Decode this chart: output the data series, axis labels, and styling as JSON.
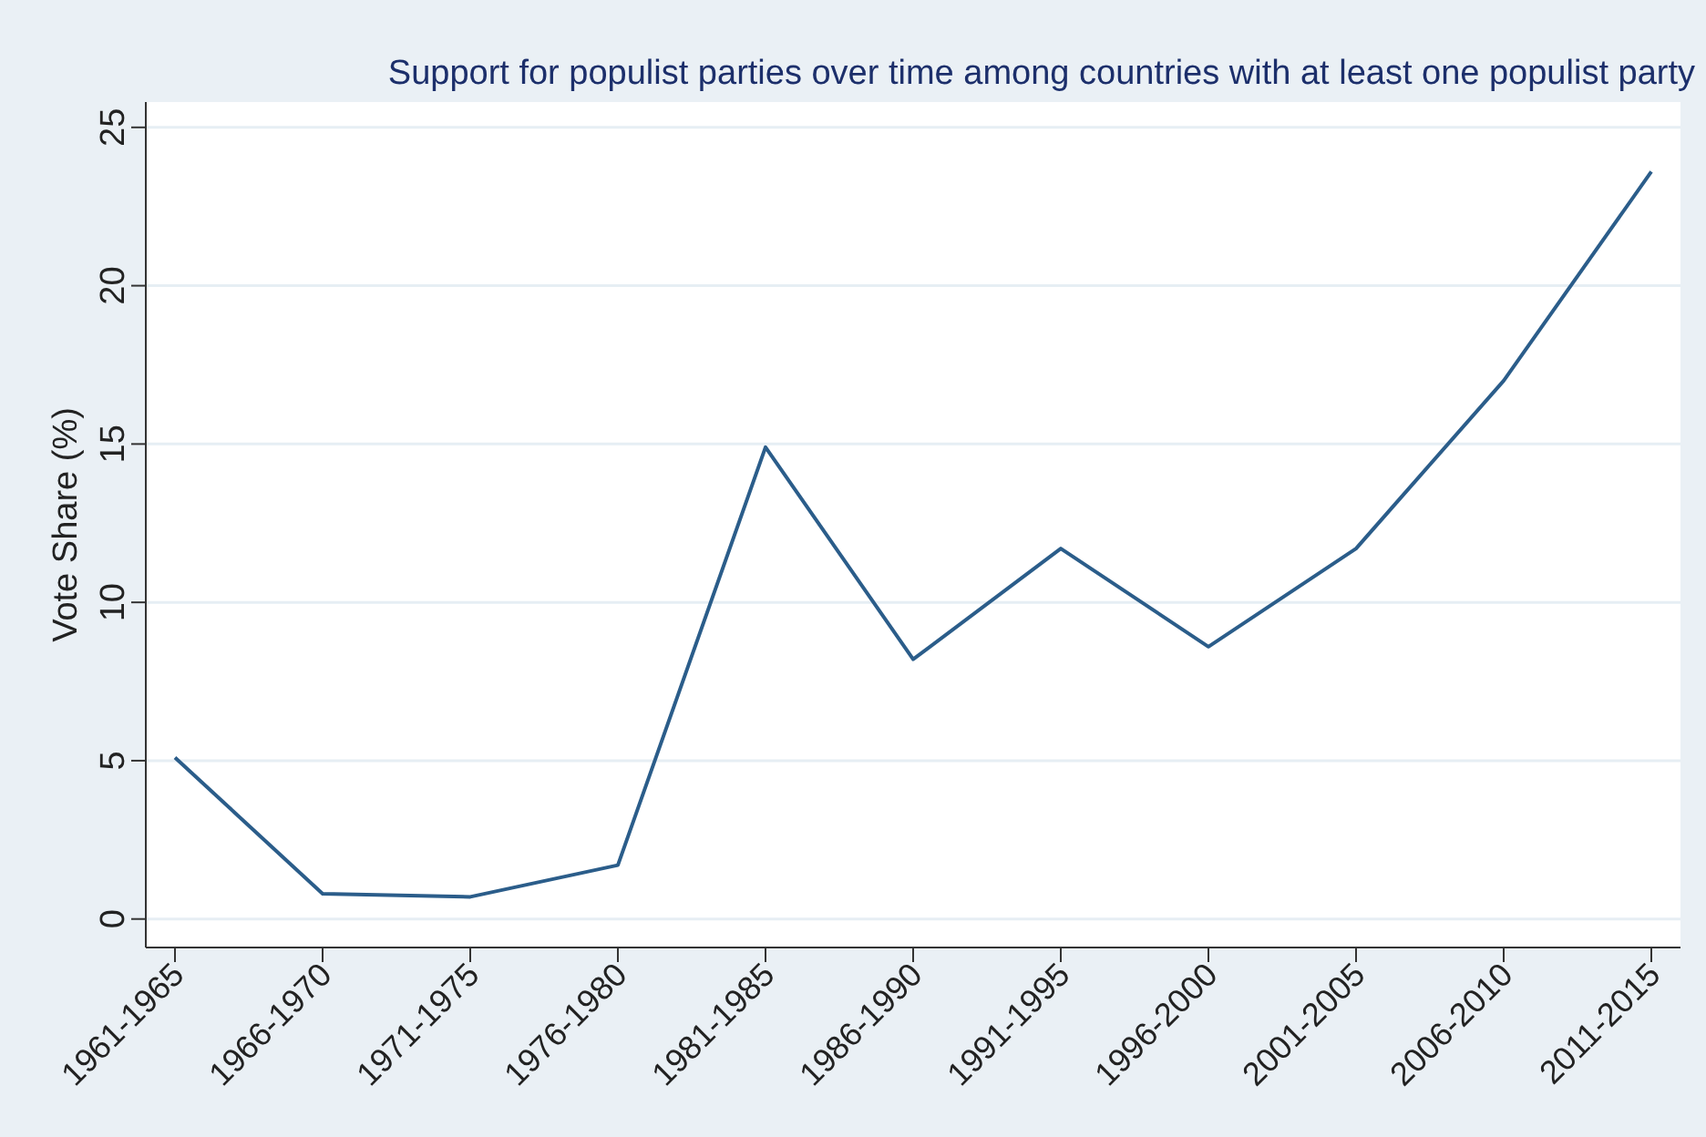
{
  "chart_data": {
    "type": "line",
    "title": "Support for populist parties over time among countries with at least one populist party",
    "ylabel": "Vote Share (%)",
    "categories": [
      "1961-1965",
      "1966-1970",
      "1971-1975",
      "1976-1980",
      "1981-1985",
      "1986-1990",
      "1991-1995",
      "1996-2000",
      "2001-2005",
      "2006-2010",
      "2011-2015"
    ],
    "series": [
      {
        "color": "#2b5d8a",
        "values": [
          5.1,
          0.8,
          0.7,
          1.7,
          14.9,
          8.2,
          11.7,
          8.6,
          11.7,
          17.0,
          23.6
        ]
      }
    ],
    "ylim": [
      -0.9,
      25.8
    ],
    "yticks": [
      0,
      5,
      10,
      15,
      20,
      25
    ],
    "grid": "y",
    "marker": "none",
    "line_style": "solid"
  }
}
